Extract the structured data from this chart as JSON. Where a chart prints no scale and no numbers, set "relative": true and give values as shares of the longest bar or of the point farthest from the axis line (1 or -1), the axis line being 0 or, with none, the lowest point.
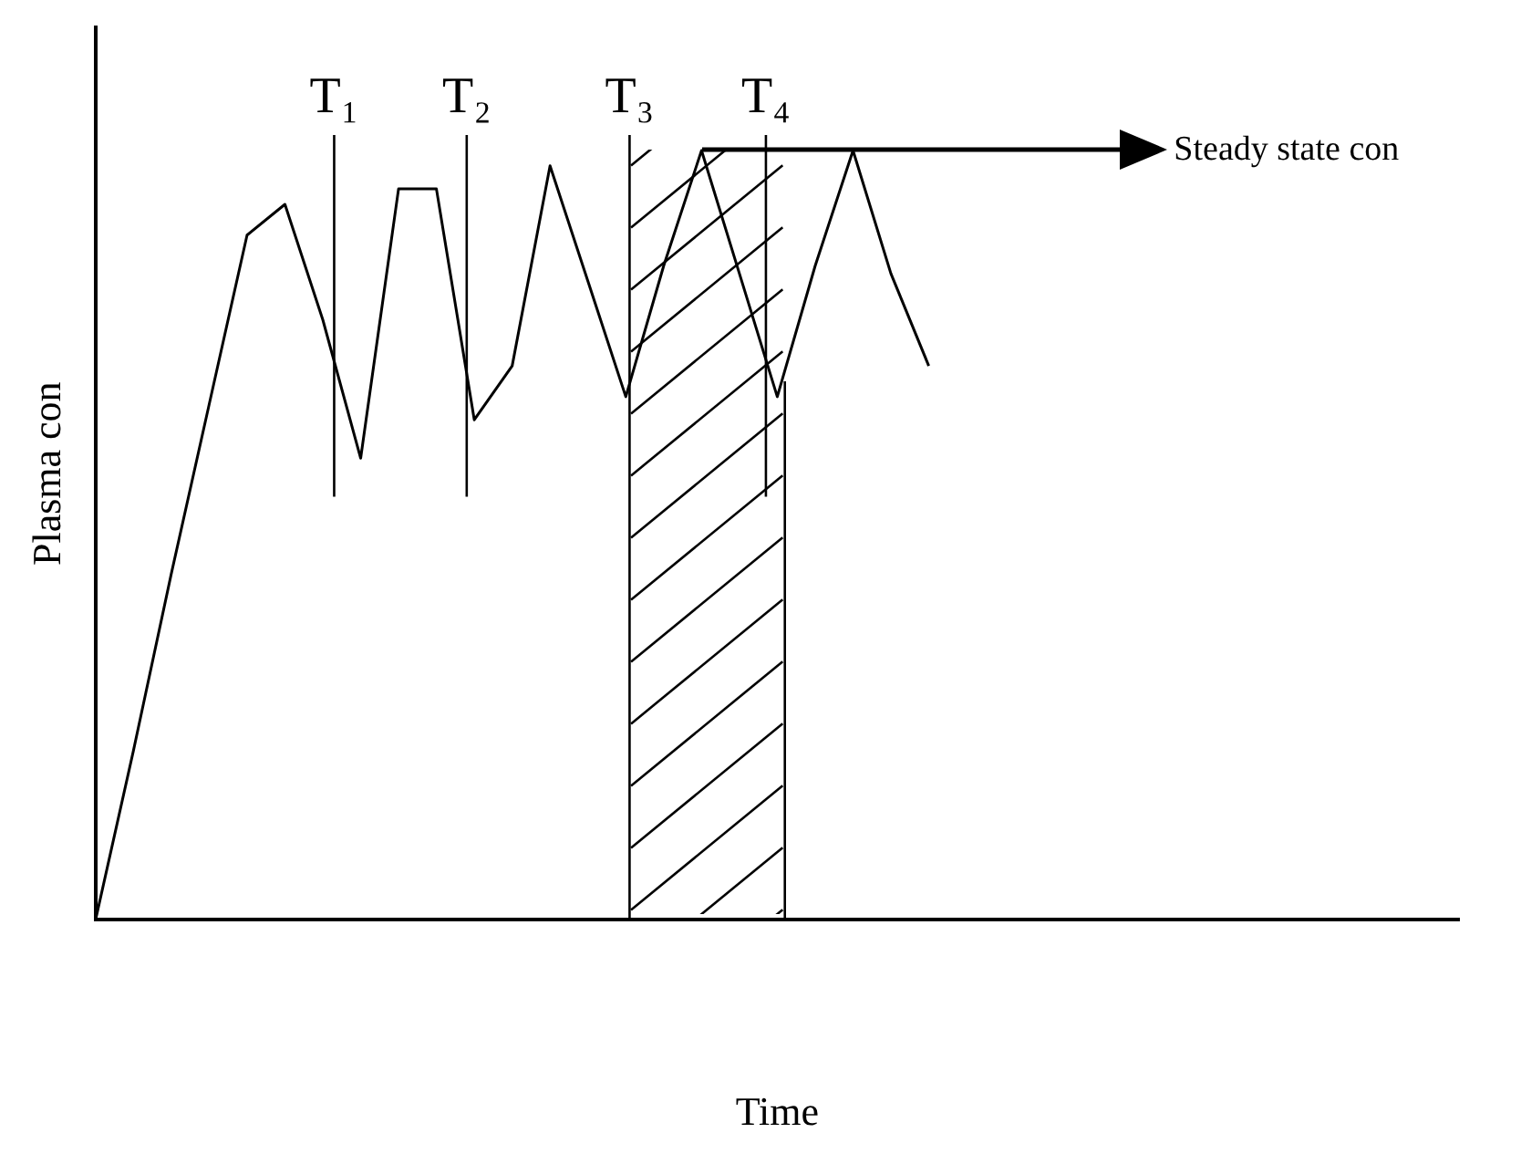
{
  "chart_data": {
    "type": "line",
    "xlabel": "Time",
    "ylabel": "Plasma con",
    "relative": true,
    "grid": false,
    "legend": false,
    "marker": "none",
    "line_style": "solid",
    "categories": [
      null,
      null,
      null,
      null,
      null,
      null,
      null,
      null,
      null,
      null,
      null,
      null,
      null,
      null,
      null,
      null,
      null,
      null,
      null,
      null,
      null,
      null,
      null,
      null,
      null,
      null,
      null,
      null,
      null,
      null,
      null,
      null,
      null,
      null,
      null,
      null,
      null
    ],
    "series": [
      {
        "color": "#000000",
        "values": [
          0,
          0.22,
          0.45,
          0.67,
          0.89,
          0.93,
          0.78,
          0.6,
          0.95,
          0.95,
          0.65,
          0.72,
          0.98,
          0.83,
          0.68,
          0.85,
          1,
          0.84,
          0.68,
          0.85,
          1,
          0.84,
          0.72,
          null,
          null,
          null,
          null,
          null,
          null,
          null,
          null,
          null,
          null,
          null,
          null,
          null,
          null
        ]
      }
    ],
    "annotations": [
      "T₁",
      "T₂",
      "T₃",
      "T₄",
      "Steady state con"
    ]
  }
}
